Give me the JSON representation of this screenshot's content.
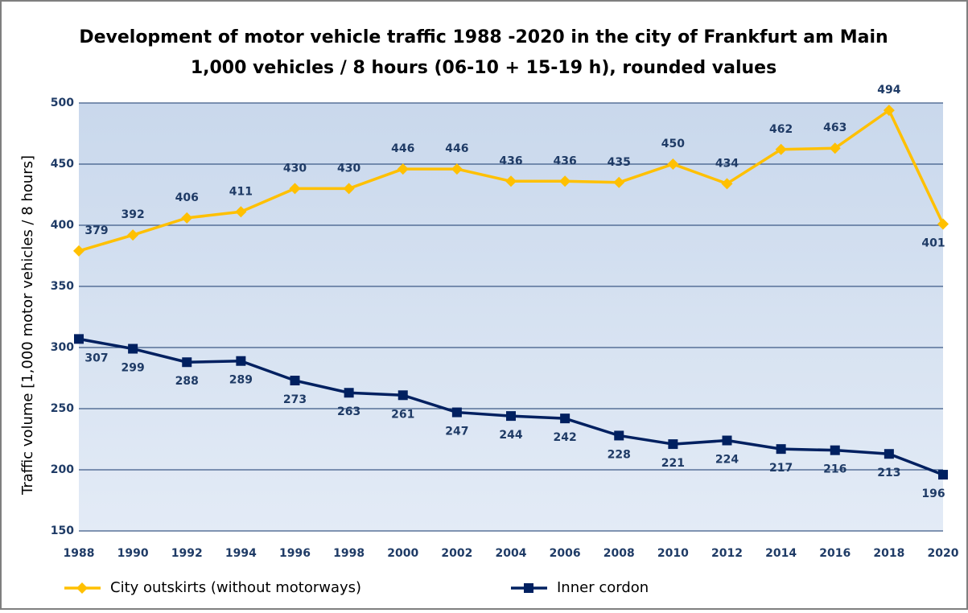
{
  "chart_data": {
    "type": "line",
    "title": "Development of motor vehicle traffic 1988 -2020 in the city of Frankfurt am Main",
    "subtitle": "1,000 vehicles / 8 hours (06-10 + 15-19 h), rounded values",
    "y_label": "Traffic volume [1,000 motor vehicles / 8 hours]",
    "x": [
      1988,
      1990,
      1992,
      1994,
      1996,
      1998,
      2000,
      2002,
      2004,
      2006,
      2008,
      2010,
      2012,
      2014,
      2016,
      2018,
      2020
    ],
    "xlim": [
      1988,
      2020
    ],
    "xticks": [
      1988,
      1990,
      1992,
      1994,
      1996,
      1998,
      2000,
      2002,
      2004,
      2006,
      2008,
      2010,
      2012,
      2014,
      2016,
      2018,
      2020
    ],
    "ylim": [
      150,
      500
    ],
    "yticks": [
      150,
      200,
      250,
      300,
      350,
      400,
      450,
      500
    ],
    "grid": true,
    "legend": "bottom",
    "series": [
      {
        "name": "City outskirts (without motorways)",
        "color": "#ffc000",
        "marker": "diamond",
        "values": [
          379,
          392,
          406,
          411,
          430,
          430,
          446,
          446,
          436,
          436,
          435,
          450,
          434,
          462,
          463,
          494,
          401
        ]
      },
      {
        "name": "Inner cordon",
        "color": "#002060",
        "marker": "square",
        "values": [
          307,
          299,
          288,
          289,
          273,
          263,
          261,
          247,
          244,
          242,
          228,
          221,
          224,
          217,
          216,
          213,
          196
        ]
      }
    ]
  }
}
